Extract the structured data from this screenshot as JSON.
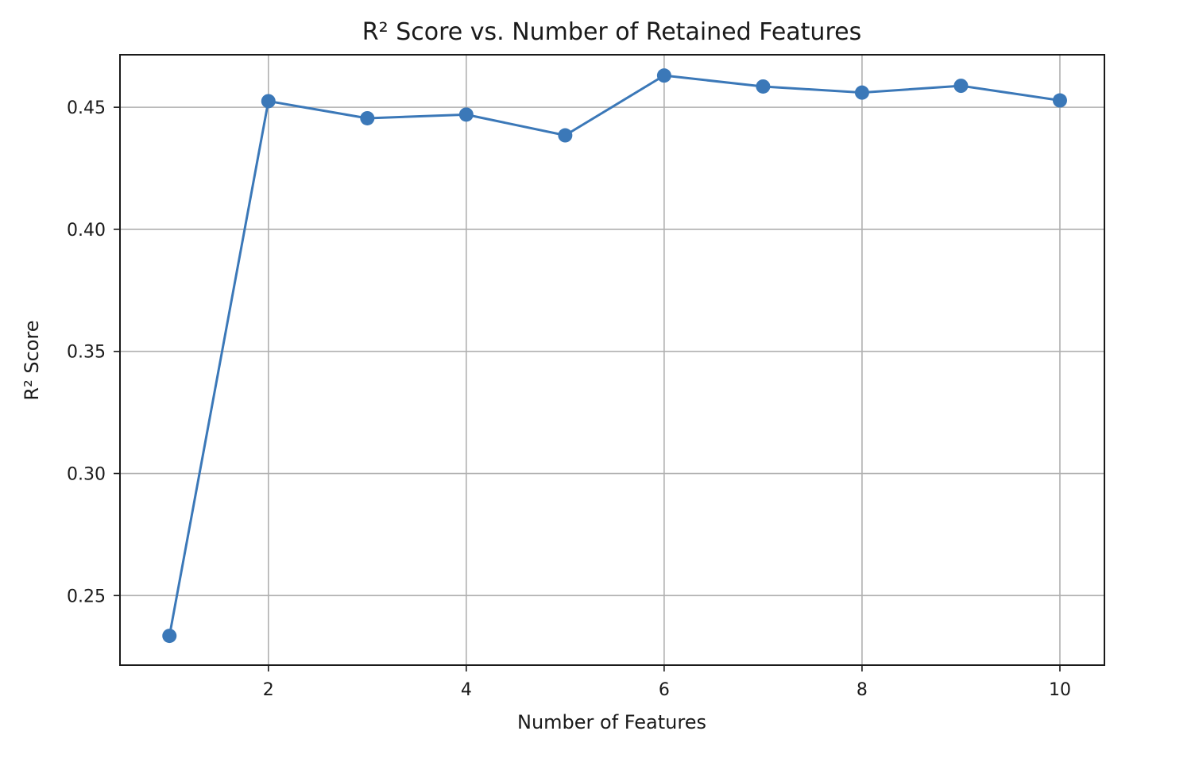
{
  "chart_data": {
    "type": "line",
    "title": "R² Score vs. Number of Retained Features",
    "xlabel": "Number of Features",
    "ylabel": "R² Score",
    "xlim": [
      0.5,
      10.45
    ],
    "ylim": [
      0.2215,
      0.4715
    ],
    "xticks": [
      2,
      4,
      6,
      8,
      10
    ],
    "xtick_labels": [
      "2",
      "4",
      "6",
      "8",
      "10"
    ],
    "yticks": [
      0.25,
      0.3,
      0.35,
      0.4,
      0.45
    ],
    "ytick_labels": [
      "0.25",
      "0.30",
      "0.35",
      "0.40",
      "0.45"
    ],
    "grid": true,
    "legend": false,
    "colors": {
      "series": "#3b78b8"
    },
    "series": [
      {
        "marker": "circle",
        "x": [
          1,
          2,
          3,
          4,
          5,
          6,
          7,
          8,
          9,
          10
        ],
        "y": [
          0.2335,
          0.4525,
          0.4455,
          0.447,
          0.4385,
          0.463,
          0.4585,
          0.456,
          0.4588,
          0.4528
        ]
      }
    ]
  }
}
